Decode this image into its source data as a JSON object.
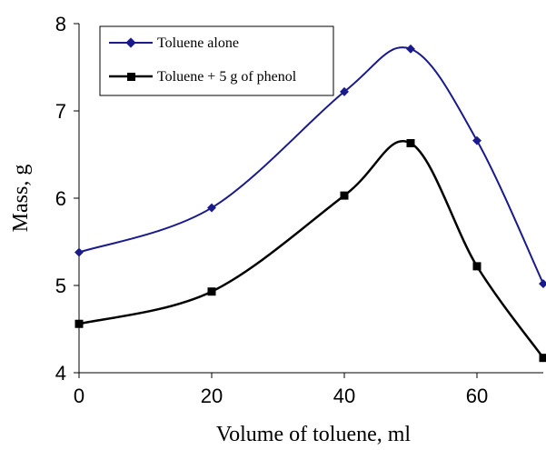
{
  "chart_data": {
    "type": "line",
    "smooth": true,
    "xlabel": "Volume of toluene, ml",
    "ylabel": "Mass, g",
    "xlim": [
      0,
      70
    ],
    "ylim": [
      4,
      8
    ],
    "xticks": [
      0,
      20,
      40,
      60
    ],
    "yticks": [
      4,
      5,
      6,
      7,
      8
    ],
    "grid": false,
    "legend_position": "top-left",
    "series": [
      {
        "name": "Toluene alone",
        "color": "#1a1a8c",
        "marker": "diamond",
        "x": [
          0,
          20,
          40,
          50,
          60,
          70
        ],
        "y": [
          5.38,
          5.89,
          7.22,
          7.71,
          6.66,
          5.02
        ]
      },
      {
        "name": "Toluene + 5 g of phenol",
        "color": "#000000",
        "marker": "square",
        "x": [
          0,
          20,
          40,
          50,
          60,
          70
        ],
        "y": [
          4.56,
          4.93,
          6.03,
          6.63,
          5.22,
          4.17
        ]
      }
    ]
  }
}
